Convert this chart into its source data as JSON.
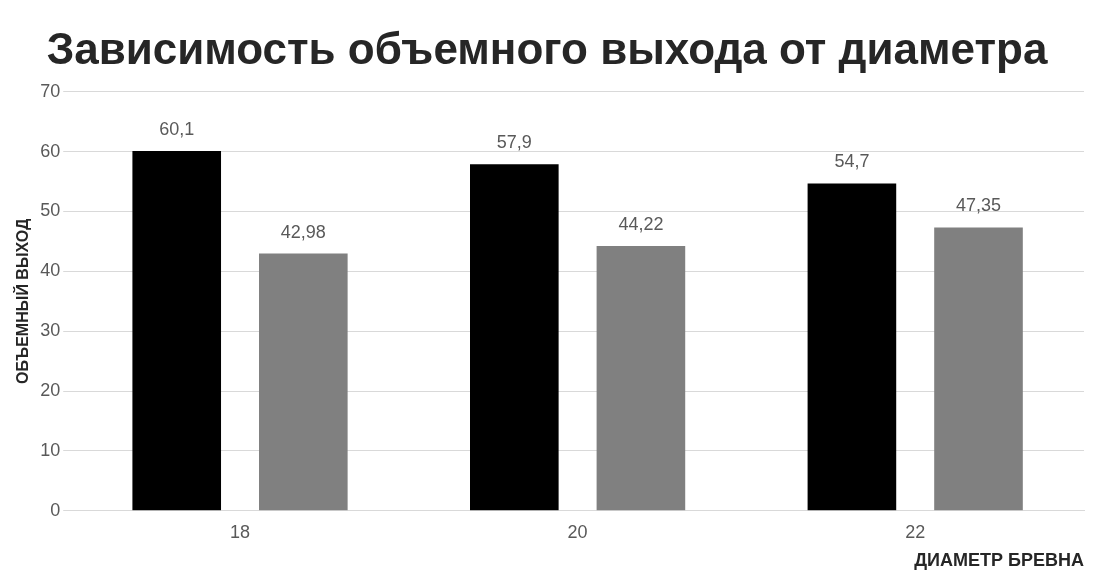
{
  "chart_data": {
    "type": "bar",
    "title": "Зависимость объемного выхода от диаметра",
    "xlabel": "ДИАМЕТР БРЕВНА",
    "ylabel": "ОБЪЕМНЫЙ ВЫХОД",
    "categories": [
      "18",
      "20",
      "22"
    ],
    "series": [
      {
        "color": "#000000",
        "values": [
          60.1,
          57.9,
          54.7
        ],
        "value_labels": [
          "60,1",
          "57,9",
          "54,7"
        ]
      },
      {
        "color": "#808080",
        "values": [
          42.98,
          44.22,
          47.35
        ],
        "value_labels": [
          "42,98",
          "44,22",
          "47,35"
        ]
      }
    ],
    "ylim": [
      0,
      70
    ],
    "yticks": [
      0,
      10,
      20,
      30,
      40,
      50,
      60,
      70
    ],
    "grid": "y",
    "legend": false
  }
}
